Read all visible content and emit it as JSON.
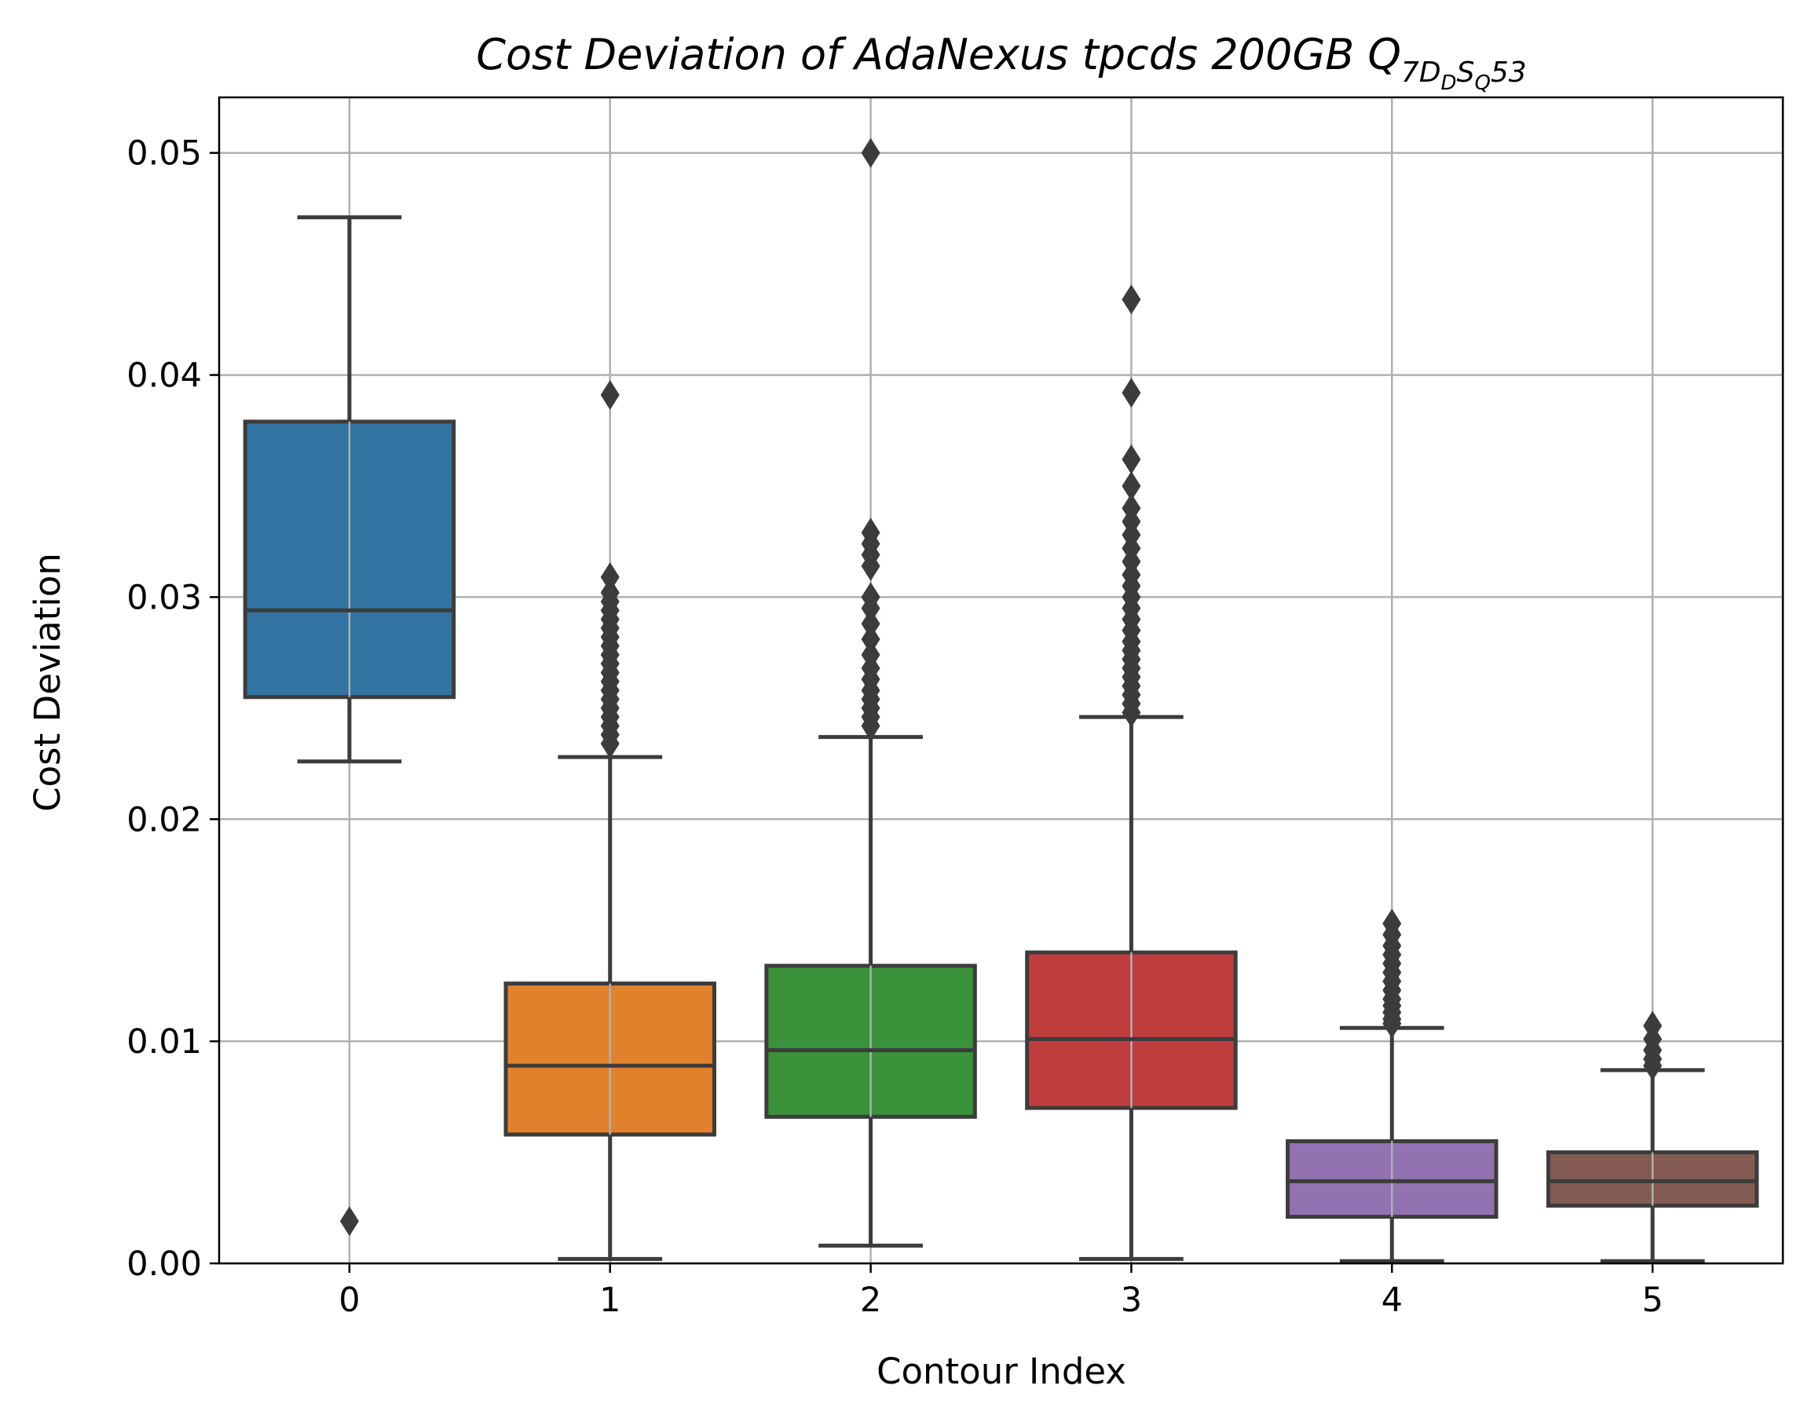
{
  "chart_data": {
    "type": "box",
    "title": {
      "prefix": "Cost Deviation of AdaNexus tpcds  200GB  Q",
      "sub_a": "7D",
      "sub_b": "D",
      "sub_c": "S",
      "sub_d": "Q",
      "suffix": "53"
    },
    "xlabel": "Contour Index",
    "ylabel": "Cost Deviation",
    "ylim": [
      0,
      0.0525
    ],
    "yticks": [
      0.0,
      0.01,
      0.02,
      0.03,
      0.04,
      0.05
    ],
    "ytick_labels": [
      "0.00",
      "0.01",
      "0.02",
      "0.03",
      "0.04",
      "0.05"
    ],
    "grid": true,
    "categories": [
      "0",
      "1",
      "2",
      "3",
      "4",
      "5"
    ],
    "series": [
      {
        "category": "0",
        "color": "#3274a1",
        "whisker_low": 0.0226,
        "q1": 0.0255,
        "median": 0.0294,
        "q3": 0.0379,
        "whisker_high": 0.0471,
        "outliers": [
          0.0019
        ]
      },
      {
        "category": "1",
        "color": "#e1812c",
        "whisker_low": 0.0002,
        "q1": 0.0058,
        "median": 0.0089,
        "q3": 0.0126,
        "whisker_high": 0.0228,
        "outliers": [
          0.0391,
          0.0309,
          0.0302,
          0.0298,
          0.0294,
          0.029,
          0.0286,
          0.0282,
          0.0278,
          0.0274,
          0.027,
          0.0266,
          0.0262,
          0.0258,
          0.0254,
          0.025,
          0.0246,
          0.0242,
          0.0238,
          0.0234
        ]
      },
      {
        "category": "2",
        "color": "#3a923a",
        "whisker_low": 0.0008,
        "q1": 0.0066,
        "median": 0.0096,
        "q3": 0.0134,
        "whisker_high": 0.0237,
        "outliers": [
          0.05,
          0.0329,
          0.0324,
          0.0319,
          0.0314,
          0.03,
          0.0295,
          0.0288,
          0.0281,
          0.0274,
          0.0268,
          0.0263,
          0.0258,
          0.0254,
          0.025,
          0.0246,
          0.0242
        ]
      },
      {
        "category": "3",
        "color": "#c03d3e",
        "whisker_low": 0.0002,
        "q1": 0.007,
        "median": 0.0101,
        "q3": 0.014,
        "whisker_high": 0.0246,
        "outliers": [
          0.0434,
          0.0392,
          0.0362,
          0.035,
          0.034,
          0.0334,
          0.0328,
          0.0322,
          0.0316,
          0.031,
          0.0305,
          0.03,
          0.0295,
          0.029,
          0.0285,
          0.028,
          0.0276,
          0.0272,
          0.0268,
          0.0264,
          0.026,
          0.0256,
          0.0252,
          0.0248
        ]
      },
      {
        "category": "4",
        "color": "#9372b2",
        "whisker_low": 0.0001,
        "q1": 0.0021,
        "median": 0.0037,
        "q3": 0.0055,
        "whisker_high": 0.0106,
        "outliers": [
          0.0153,
          0.0148,
          0.0143,
          0.0139,
          0.0135,
          0.0131,
          0.0127,
          0.0123,
          0.0119,
          0.0116,
          0.0113,
          0.011,
          0.0108
        ]
      },
      {
        "category": "5",
        "color": "#845b53",
        "whisker_low": 0.0001,
        "q1": 0.0026,
        "median": 0.0037,
        "q3": 0.005,
        "whisker_high": 0.0087,
        "outliers": [
          0.0107,
          0.0101,
          0.0096,
          0.0092,
          0.0089
        ]
      }
    ]
  }
}
